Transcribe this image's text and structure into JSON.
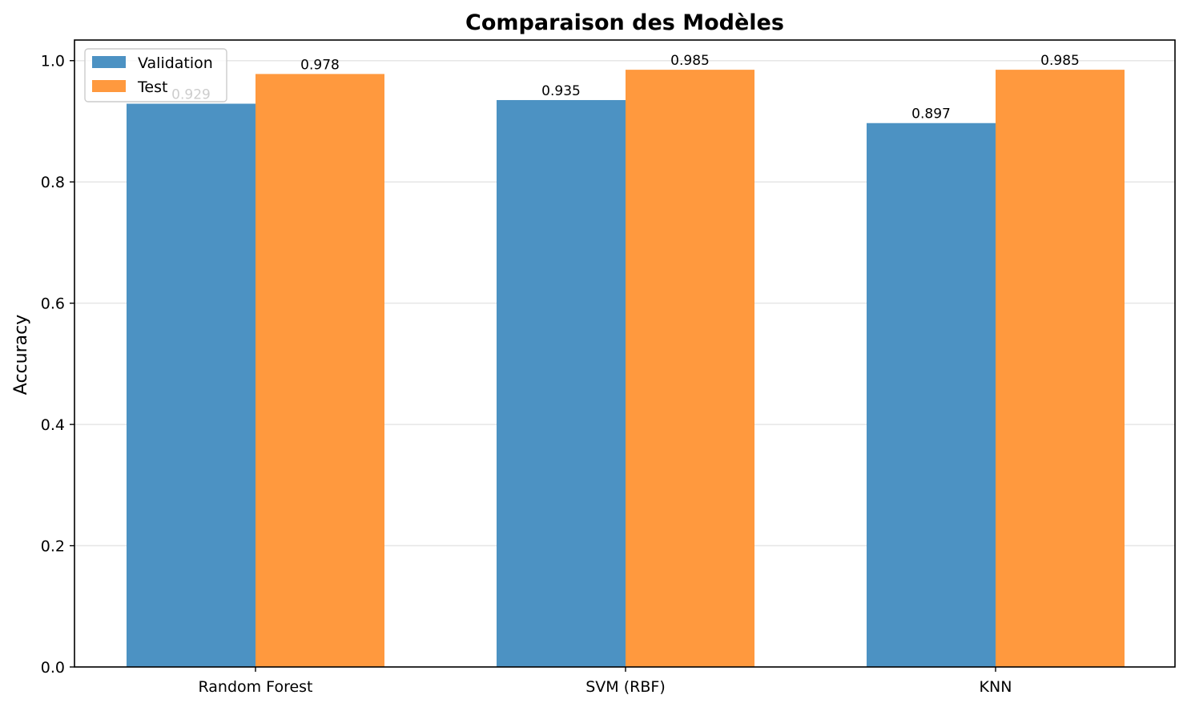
{
  "chart_data": {
    "type": "bar",
    "title": "Comparaison des Modèles",
    "xlabel": "",
    "ylabel": "Accuracy",
    "categories": [
      "Random Forest",
      "SVM (RBF)",
      "KNN"
    ],
    "series": [
      {
        "name": "Validation",
        "values": [
          0.929,
          0.935,
          0.897
        ],
        "labels": [
          "0.929",
          "0.935",
          "0.897"
        ],
        "color": "#4c92c3"
      },
      {
        "name": "Test",
        "values": [
          0.978,
          0.985,
          0.985
        ],
        "labels": [
          "0.978",
          "0.985",
          "0.985"
        ],
        "color": "#ff993e"
      }
    ],
    "ylim": [
      0,
      1.034
    ],
    "yticks": [
      0.0,
      0.2,
      0.4,
      0.6,
      0.8,
      1.0
    ],
    "ytick_labels": [
      "0.0",
      "0.2",
      "0.4",
      "0.6",
      "0.8",
      "1.0"
    ],
    "grid": "horizontal",
    "legend_position": "top-left"
  }
}
